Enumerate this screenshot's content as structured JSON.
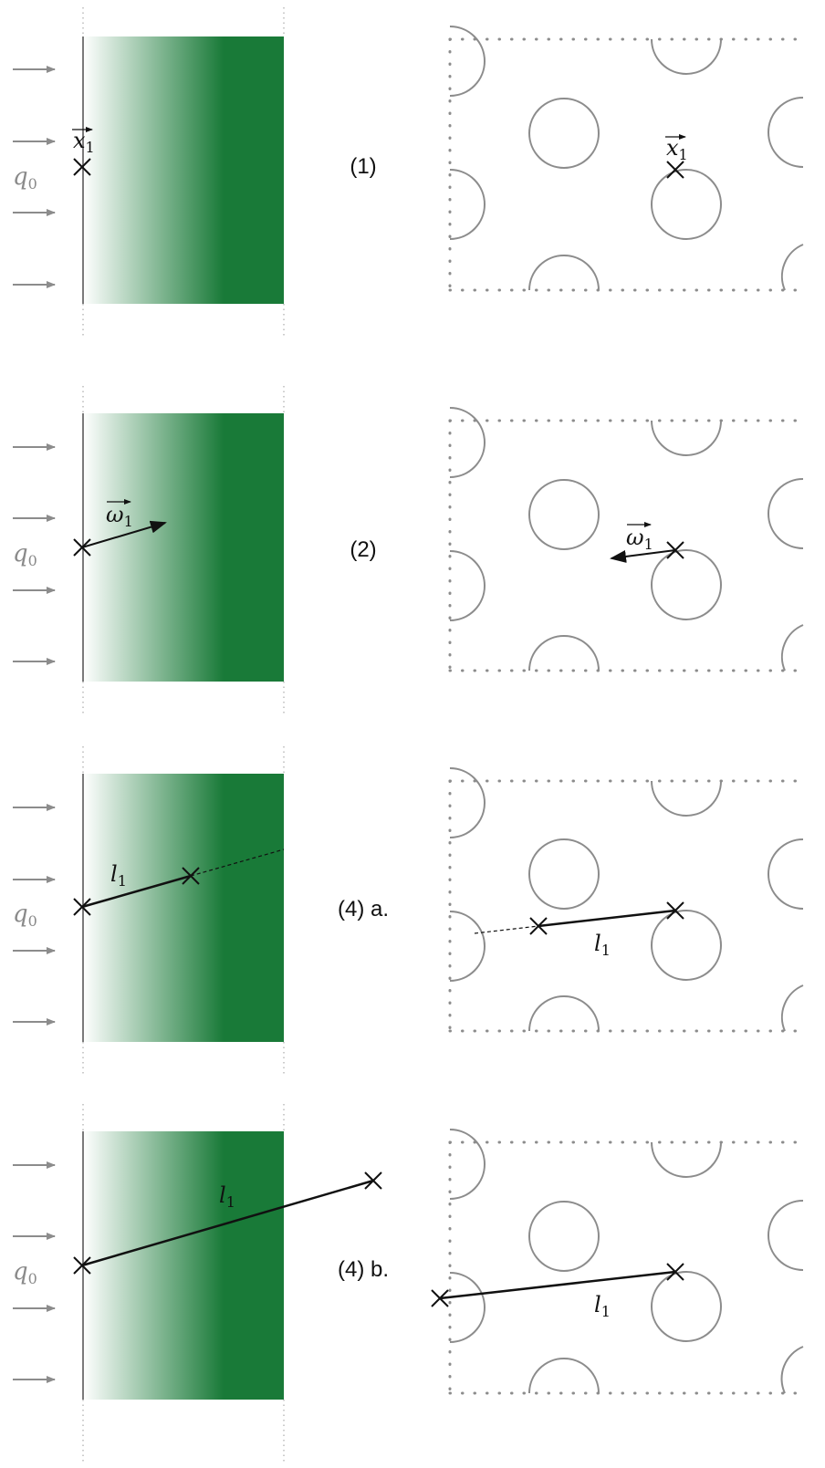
{
  "colors": {
    "slab_dark": "#197a38",
    "slab_light": "#ffffff",
    "flux_arrow": "#8c8c8c",
    "boundary_dots": "#8c8c8c",
    "circle_stroke": "#8c8c8c",
    "path": "#111111"
  },
  "panels": [
    {
      "step_label": "(1)",
      "flux_label": "q",
      "flux_sub": "0",
      "left_vector_label": "x",
      "left_vector_sub": "1",
      "right_vector_label": "x",
      "right_vector_sub": "1"
    },
    {
      "step_label": "(2)",
      "flux_label": "q",
      "flux_sub": "0",
      "left_vector_label": "ω",
      "left_vector_sub": "1",
      "right_vector_label": "ω",
      "right_vector_sub": "1"
    },
    {
      "step_label": "(4) a.",
      "flux_label": "q",
      "flux_sub": "0",
      "left_length_label": "l",
      "left_length_sub": "1",
      "right_length_label": "l",
      "right_length_sub": "1"
    },
    {
      "step_label": "(4) b.",
      "flux_label": "q",
      "flux_sub": "0",
      "left_length_label": "l",
      "left_length_sub": "1",
      "right_length_label": "l",
      "right_length_sub": "1"
    }
  ]
}
